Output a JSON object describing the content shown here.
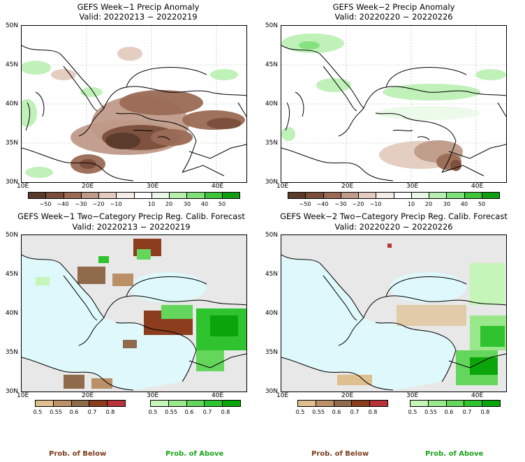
{
  "panels": [
    {
      "title": "GEFS Week−1 Precip Anomaly",
      "valid": "Valid: 20220213 − 20220219"
    },
    {
      "title": "GEFS Week−2 Precip Anomaly",
      "valid": "Valid: 20220220 − 20220226"
    },
    {
      "title": "GEFS Week−1 Two−Category Precip Reg. Calib. Forecast",
      "valid": "Valid: 20220213 − 20220219"
    },
    {
      "title": "GEFS Week−2 Two−Category Precip Reg. Calib. Forecast",
      "valid": "Valid: 20220220 − 20220226"
    }
  ],
  "lat_labels": [
    "50N",
    "45N",
    "40N",
    "35N",
    "30N"
  ],
  "lon_labels": [
    "10E",
    "20E",
    "30E",
    "40E"
  ],
  "anomaly_colorbar": {
    "labels": [
      "−50",
      "−40",
      "−30",
      "−20",
      "−10",
      "10",
      "20",
      "30",
      "40",
      "50"
    ],
    "colors": [
      "#5a3a2a",
      "#7a4e3a",
      "#9a6a55",
      "#bf9a88",
      "#e3cbbf",
      "#f5ece8",
      "#ffffff",
      "#eaf9e7",
      "#b8efb0",
      "#7fe07a",
      "#3ec43b",
      "#0f9e12"
    ]
  },
  "prob_below_colorbar": {
    "labels": [
      "0.5",
      "0.55",
      "0.6",
      "0.7",
      "0.8"
    ],
    "colors": [
      "#dfbf8f",
      "#bb9066",
      "#8f6a4b",
      "#8b3d1e",
      "#b8323a"
    ]
  },
  "prob_above_colorbar": {
    "labels": [
      "0.5",
      "0.55",
      "0.6",
      "0.7",
      "0.8"
    ],
    "colors": [
      "#c5f5b8",
      "#9ae88c",
      "#63d65b",
      "#2fc42f",
      "#0aa50a"
    ]
  },
  "footer": {
    "below_label": "Prob. of Below",
    "above_label": "Prob. of Above",
    "below_color": "#7a3b1d",
    "above_color": "#1aa31a"
  },
  "map_colors": {
    "sea_fill": "#dff8fb",
    "land_gray": "#e8e8e8",
    "coast": "#000000"
  }
}
